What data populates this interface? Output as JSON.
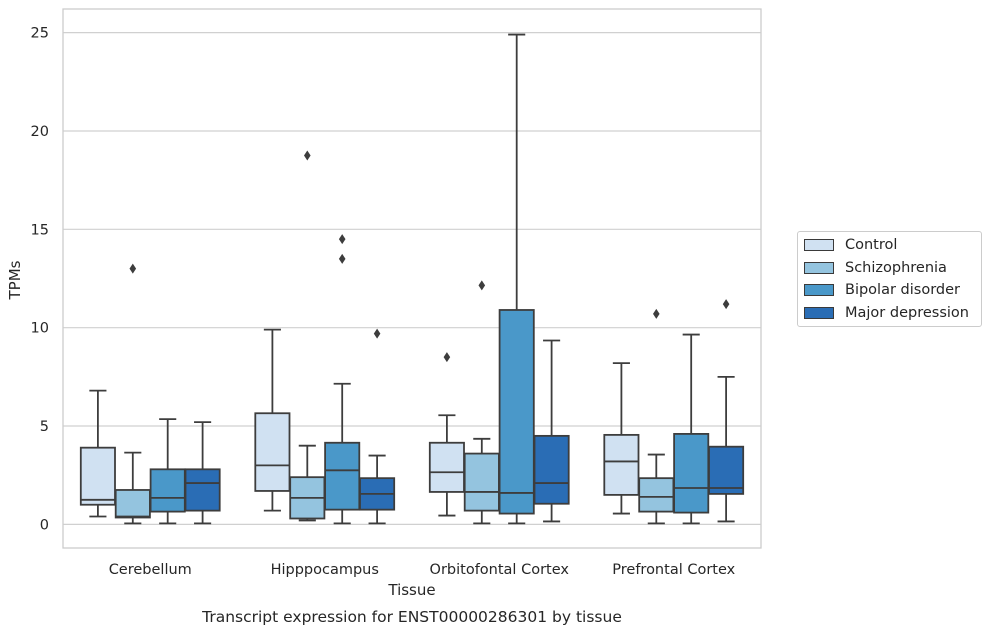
{
  "chart_data": {
    "type": "box",
    "title": "Transcript expression for ENST00000286301 by tissue",
    "xlabel": "Tissue",
    "ylabel": "TPMs",
    "ylim": [
      -1.2,
      26.2
    ],
    "yticks": [
      0,
      5,
      10,
      15,
      20,
      25
    ],
    "grid": "horizontal",
    "legend_position": "right",
    "categories": [
      "Cerebellum",
      "Hipppocampus",
      "Orbitofontal Cortex",
      "Prefrontal Cortex"
    ],
    "series": [
      {
        "name": "Control",
        "color": "#d0e1f2",
        "boxes": [
          {
            "whisker_low": 0.4,
            "q1": 1.0,
            "median": 1.25,
            "q3": 3.9,
            "whisker_high": 6.8,
            "outliers": []
          },
          {
            "whisker_low": 0.7,
            "q1": 1.7,
            "median": 3.0,
            "q3": 5.65,
            "whisker_high": 9.9,
            "outliers": []
          },
          {
            "whisker_low": 0.45,
            "q1": 1.65,
            "median": 2.65,
            "q3": 4.15,
            "whisker_high": 5.55,
            "outliers": [
              8.5
            ]
          },
          {
            "whisker_low": 0.55,
            "q1": 1.5,
            "median": 3.2,
            "q3": 4.55,
            "whisker_high": 8.2,
            "outliers": []
          }
        ]
      },
      {
        "name": "Schizophrenia",
        "color": "#94c4df",
        "boxes": [
          {
            "whisker_low": 0.05,
            "q1": 0.35,
            "median": 0.4,
            "q3": 1.75,
            "whisker_high": 3.65,
            "outliers": [
              13.0
            ]
          },
          {
            "whisker_low": 0.2,
            "q1": 0.3,
            "median": 1.35,
            "q3": 2.4,
            "whisker_high": 4.0,
            "outliers": [
              18.75
            ]
          },
          {
            "whisker_low": 0.05,
            "q1": 0.7,
            "median": 1.65,
            "q3": 3.6,
            "whisker_high": 4.35,
            "outliers": [
              12.15
            ]
          },
          {
            "whisker_low": 0.05,
            "q1": 0.65,
            "median": 1.4,
            "q3": 2.35,
            "whisker_high": 3.55,
            "outliers": [
              10.7
            ]
          }
        ]
      },
      {
        "name": "Bipolar disorder",
        "color": "#4a98c9",
        "boxes": [
          {
            "whisker_low": 0.05,
            "q1": 0.65,
            "median": 1.35,
            "q3": 2.8,
            "whisker_high": 5.35,
            "outliers": []
          },
          {
            "whisker_low": 0.05,
            "q1": 0.75,
            "median": 2.75,
            "q3": 4.15,
            "whisker_high": 7.15,
            "outliers": [
              13.5,
              14.5
            ]
          },
          {
            "whisker_low": 0.05,
            "q1": 0.55,
            "median": 1.6,
            "q3": 10.9,
            "whisker_high": 24.9,
            "outliers": []
          },
          {
            "whisker_low": 0.05,
            "q1": 0.6,
            "median": 1.85,
            "q3": 4.6,
            "whisker_high": 9.65,
            "outliers": []
          }
        ]
      },
      {
        "name": "Major depression",
        "color": "#2a6db5",
        "boxes": [
          {
            "whisker_low": 0.05,
            "q1": 0.7,
            "median": 2.1,
            "q3": 2.8,
            "whisker_high": 5.2,
            "outliers": []
          },
          {
            "whisker_low": 0.05,
            "q1": 0.75,
            "median": 1.55,
            "q3": 2.35,
            "whisker_high": 3.5,
            "outliers": [
              9.7
            ]
          },
          {
            "whisker_low": 0.15,
            "q1": 1.05,
            "median": 2.1,
            "q3": 4.5,
            "whisker_high": 9.35,
            "outliers": []
          },
          {
            "whisker_low": 0.15,
            "q1": 1.55,
            "median": 1.85,
            "q3": 3.95,
            "whisker_high": 7.5,
            "outliers": [
              11.2
            ]
          }
        ]
      }
    ]
  },
  "legend": {
    "items": [
      {
        "label": "Control",
        "color": "#d0e1f2"
      },
      {
        "label": "Schizophrenia",
        "color": "#94c4df"
      },
      {
        "label": "Bipolar disorder",
        "color": "#4a98c9"
      },
      {
        "label": "Major depression",
        "color": "#2a6db5"
      }
    ]
  }
}
